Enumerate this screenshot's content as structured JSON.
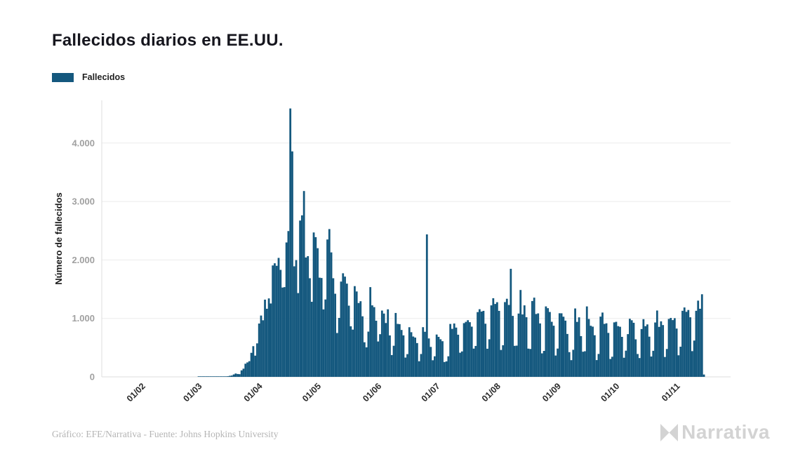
{
  "title": "Fallecidos diarios en EE.UU.",
  "legend": {
    "label": "Fallecidos",
    "color": "#14587e"
  },
  "footer": {
    "credit": "Gráfico: EFE/Narrativa - Fuente: Johns Hopkins University",
    "logo_text": "Narrativa"
  },
  "colors": {
    "bar": "#14587e",
    "grid": "#ebebeb",
    "axis_line": "#dedede",
    "y_tick_text": "#a0a0a0",
    "x_tick_text": "#2b2b2b",
    "axis_title_text": "#1a1a1a"
  },
  "chart_data": {
    "type": "bar",
    "title": "Fallecidos diarios en EE.UU.",
    "series_name": "Fallecidos",
    "xlabel": "",
    "ylabel": "Número de fallecidos",
    "start_date": "2020-01-22",
    "end_date": "2020-11-14",
    "x_tick_labels": [
      "01/02",
      "01/03",
      "01/04",
      "01/05",
      "01/06",
      "01/07",
      "01/08",
      "01/09",
      "01/10",
      "01/11"
    ],
    "x_tick_day_offsets": [
      10,
      39,
      70,
      100,
      131,
      161,
      192,
      223,
      253,
      284
    ],
    "y_ticks": [
      0,
      1000,
      2000,
      3000,
      4000
    ],
    "y_tick_labels": [
      "0",
      "1.000",
      "2.000",
      "3.000",
      "4.000"
    ],
    "ylim": [
      0,
      4724
    ],
    "grid": true,
    "legend_position": "top-left",
    "bar_color": "#14587e",
    "values": [
      0,
      0,
      0,
      0,
      0,
      0,
      0,
      0,
      0,
      0,
      0,
      0,
      0,
      0,
      0,
      0,
      0,
      0,
      0,
      0,
      0,
      0,
      0,
      0,
      0,
      0,
      0,
      0,
      0,
      0,
      0,
      0,
      0,
      0,
      0,
      0,
      0,
      0,
      1,
      1,
      4,
      1,
      4,
      1,
      3,
      2,
      4,
      4,
      4,
      8,
      3,
      8,
      8,
      11,
      18,
      23,
      41,
      57,
      49,
      46,
      111,
      140,
      225,
      247,
      268,
      411,
      525,
      363,
      573,
      912,
      1049,
      968,
      1321,
      1165,
      1342,
      1255,
      1906,
      1943,
      1900,
      2035,
      1830,
      1528,
      1535,
      2299,
      2494,
      4591,
      3857,
      1891,
      1997,
      1433,
      2674,
      2763,
      3179,
      2042,
      2065,
      1687,
      1284,
      2470,
      2390,
      2201,
      1697,
      1691,
      1154,
      1324,
      2350,
      2528,
      2129,
      1687,
      1422,
      750,
      1008,
      1630,
      1772,
      1715,
      1595,
      1218,
      865,
      808,
      1552,
      1461,
      1263,
      1294,
      1036,
      592,
      505,
      774,
      1535,
      1223,
      1193,
      960,
      605,
      730,
      1134,
      1083,
      921,
      1155,
      709,
      373,
      532,
      1093,
      906,
      902,
      802,
      710,
      330,
      389,
      849,
      764,
      690,
      672,
      578,
      267,
      391,
      850,
      771,
      2437,
      657,
      512,
      284,
      352,
      724,
      684,
      643,
      610,
      254,
      265,
      352,
      905,
      821,
      913,
      843,
      721,
      413,
      435,
      919,
      941,
      969,
      935,
      859,
      483,
      529,
      1108,
      1157,
      1117,
      1129,
      909,
      481,
      643,
      1223,
      1345,
      1247,
      1277,
      1129,
      460,
      541,
      1279,
      1336,
      1230,
      1848,
      1043,
      531,
      534,
      1083,
      1486,
      1068,
      1223,
      1020,
      483,
      477,
      1297,
      1355,
      1075,
      1086,
      914,
      402,
      444,
      1205,
      1175,
      1110,
      942,
      875,
      365,
      484,
      1088,
      1087,
      1029,
      962,
      734,
      423,
      286,
      463,
      1170,
      940,
      1018,
      697,
      430,
      438,
      1205,
      990,
      874,
      859,
      712,
      287,
      392,
      1031,
      1100,
      906,
      916,
      752,
      306,
      344,
      932,
      942,
      868,
      857,
      684,
      327,
      448,
      731,
      994,
      968,
      925,
      642,
      391,
      322,
      818,
      987,
      867,
      897,
      688,
      348,
      446,
      930,
      1135,
      855,
      950,
      886,
      340,
      477,
      991,
      1008,
      971,
      1004,
      826,
      369,
      516,
      1130,
      1187,
      1113,
      1144,
      1019,
      440,
      621,
      1130,
      1304,
      1165,
      1413,
      40
    ]
  }
}
